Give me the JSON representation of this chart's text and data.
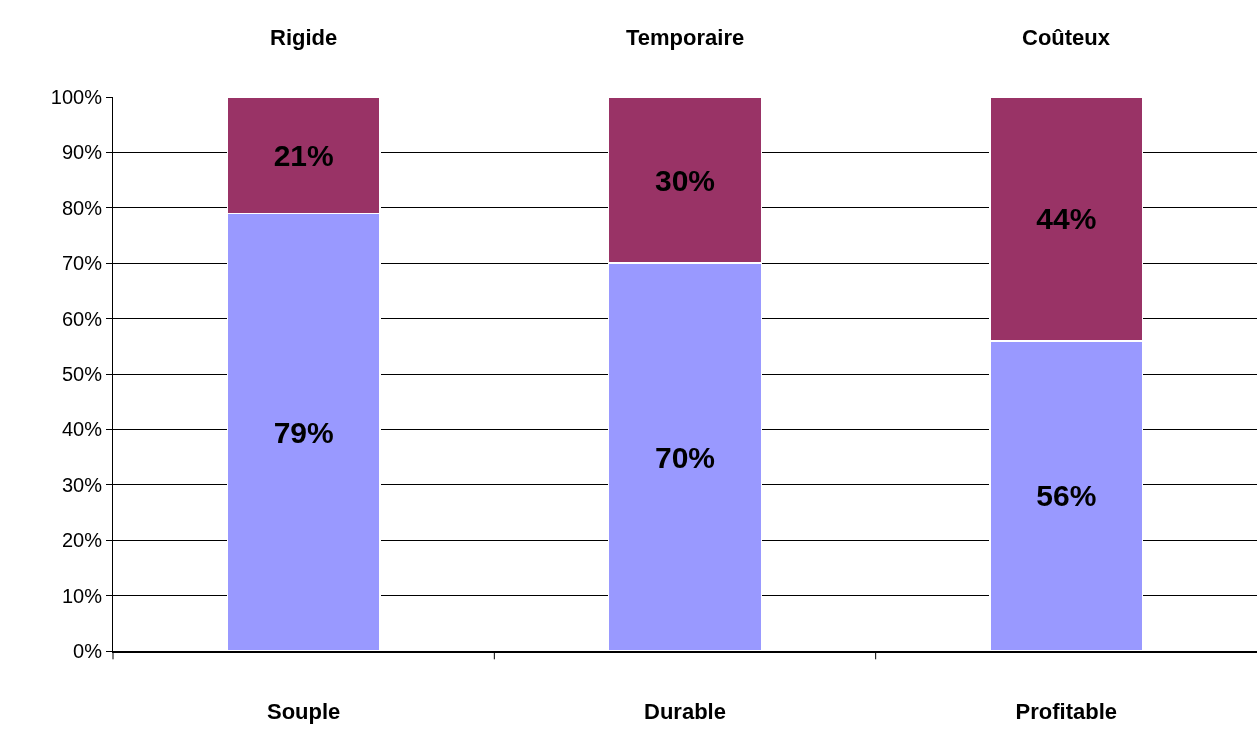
{
  "chart_data": {
    "type": "bar",
    "stacked": true,
    "categories": [
      "Souple",
      "Durable",
      "Profitable"
    ],
    "series": [
      {
        "color": "#9999ff",
        "values": [
          79,
          70,
          56
        ],
        "value_labels": [
          "79%",
          "70%",
          "56%"
        ]
      },
      {
        "color": "#993366",
        "values": [
          21,
          30,
          44
        ],
        "value_labels": [
          "21%",
          "30%",
          "44%"
        ]
      }
    ],
    "ylim": [
      0,
      100
    ],
    "yticks": [
      {
        "value": 0,
        "label": "0%"
      },
      {
        "value": 10,
        "label": "10%"
      },
      {
        "value": 20,
        "label": "20%"
      },
      {
        "value": 30,
        "label": "30%"
      },
      {
        "value": 40,
        "label": "40%"
      },
      {
        "value": 50,
        "label": "50%"
      },
      {
        "value": 60,
        "label": "60%"
      },
      {
        "value": 70,
        "label": "70%"
      },
      {
        "value": 80,
        "label": "80%"
      },
      {
        "value": 90,
        "label": "90%"
      },
      {
        "value": 100,
        "label": "100%"
      }
    ],
    "grid": "y",
    "legend": false,
    "annotations": [
      {
        "text": "Rigide",
        "x": "Souple",
        "y": 100
      },
      {
        "text": "Temporaire",
        "x": "Durable",
        "y": 100
      },
      {
        "text": "Coûteux",
        "x": "Profitable",
        "y": 100
      }
    ]
  }
}
